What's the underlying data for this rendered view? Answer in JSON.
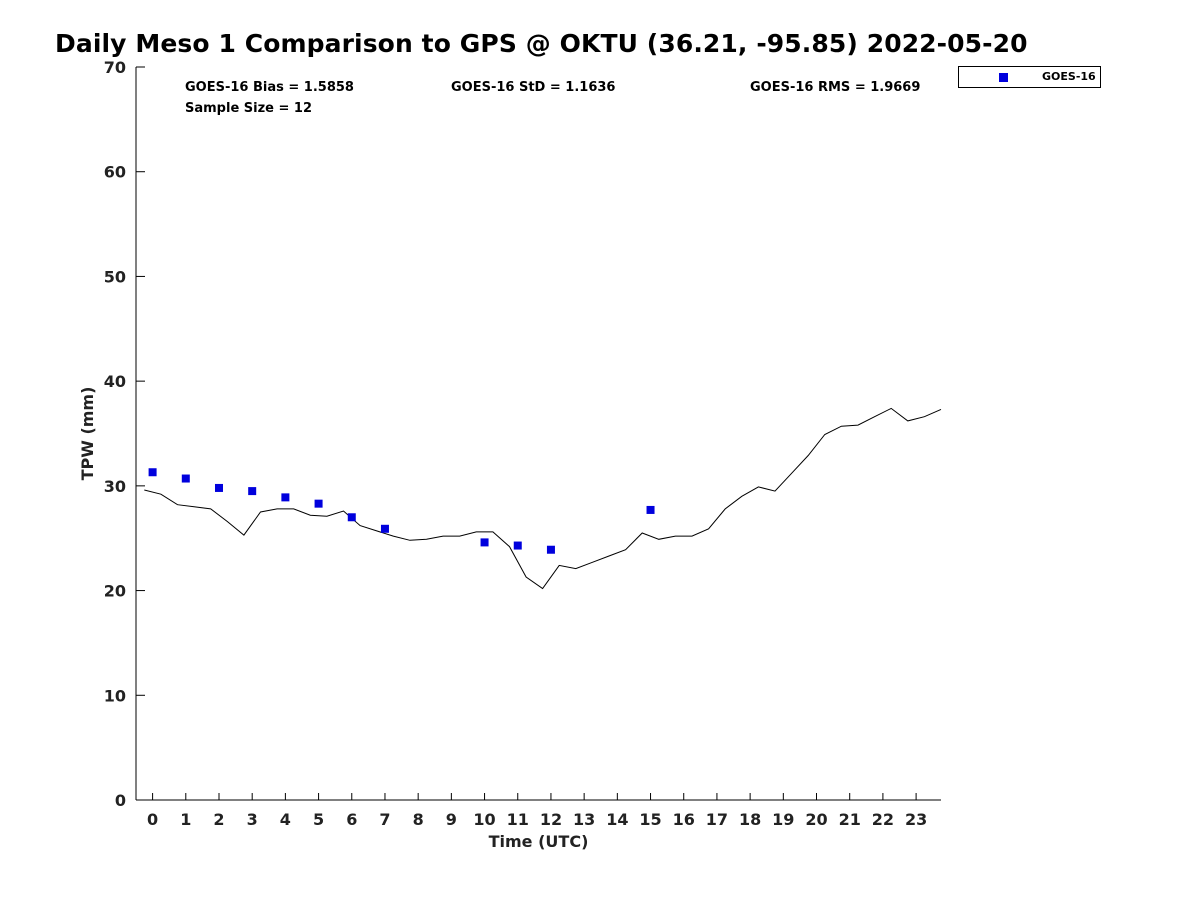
{
  "chart_data": {
    "type": "scatter",
    "title": "Daily Meso 1 Comparison to GPS @ OKTU (36.21, -95.85) 2022-05-20",
    "xlabel": "Time (UTC)",
    "ylabel": "TPW (mm)",
    "xlim": [
      -0.5,
      23.75
    ],
    "ylim": [
      0,
      70
    ],
    "x_ticks": [
      "0",
      "1",
      "2",
      "3",
      "4",
      "5",
      "6",
      "7",
      "8",
      "9",
      "10",
      "11",
      "12",
      "13",
      "14",
      "15",
      "16",
      "17",
      "18",
      "19",
      "20",
      "21",
      "22",
      "23"
    ],
    "y_ticks": [
      "0",
      "10",
      "20",
      "30",
      "40",
      "50",
      "60",
      "70"
    ],
    "grid": false,
    "legend_position": "top-right, outside plot",
    "stats": {
      "bias": "GOES-16 Bias = 1.5858",
      "std": "GOES-16 StD = 1.1636",
      "rms": "GOES-16 RMS = 1.9669",
      "sample_size": "Sample Size = 12"
    },
    "series": [
      {
        "name": "GOES-16",
        "kind": "markers",
        "color": "#0000dd",
        "x": [
          0,
          1,
          2,
          3,
          4,
          5,
          6,
          7,
          10,
          11,
          12,
          15
        ],
        "y": [
          31.3,
          30.7,
          29.8,
          29.5,
          28.9,
          28.3,
          27.0,
          25.9,
          24.6,
          24.3,
          23.9,
          27.7
        ]
      },
      {
        "kind": "line",
        "color": "#000000",
        "x": [
          -0.25,
          0.25,
          0.75,
          1.25,
          1.75,
          2.25,
          2.75,
          3.25,
          3.75,
          4.25,
          4.75,
          5.25,
          5.75,
          6.25,
          6.75,
          7.25,
          7.75,
          8.25,
          8.75,
          9.25,
          9.75,
          10.25,
          10.75,
          11.25,
          11.75,
          12.25,
          12.75,
          13.25,
          13.75,
          14.25,
          14.75,
          15.25,
          15.75,
          16.25,
          16.75,
          17.25,
          17.75,
          18.25,
          18.75,
          19.25,
          19.75,
          20.25,
          20.75,
          21.25,
          21.75,
          22.25,
          22.75,
          23.25,
          23.75
        ],
        "y": [
          29.6,
          29.2,
          28.2,
          28.0,
          27.8,
          26.6,
          25.3,
          27.5,
          27.8,
          27.8,
          27.2,
          27.1,
          27.6,
          26.2,
          25.7,
          25.2,
          24.8,
          24.9,
          25.2,
          25.2,
          25.6,
          25.6,
          24.2,
          21.3,
          20.2,
          22.4,
          22.1,
          22.7,
          23.3,
          23.9,
          25.5,
          24.9,
          25.2,
          25.2,
          25.9,
          27.8,
          29.0,
          29.9,
          29.5,
          31.2,
          32.9,
          34.9,
          35.7,
          35.8,
          36.6,
          37.4,
          36.2,
          36.6,
          37.3
        ]
      }
    ]
  },
  "legend": {
    "label": "GOES-16",
    "color": "#0000dd"
  }
}
